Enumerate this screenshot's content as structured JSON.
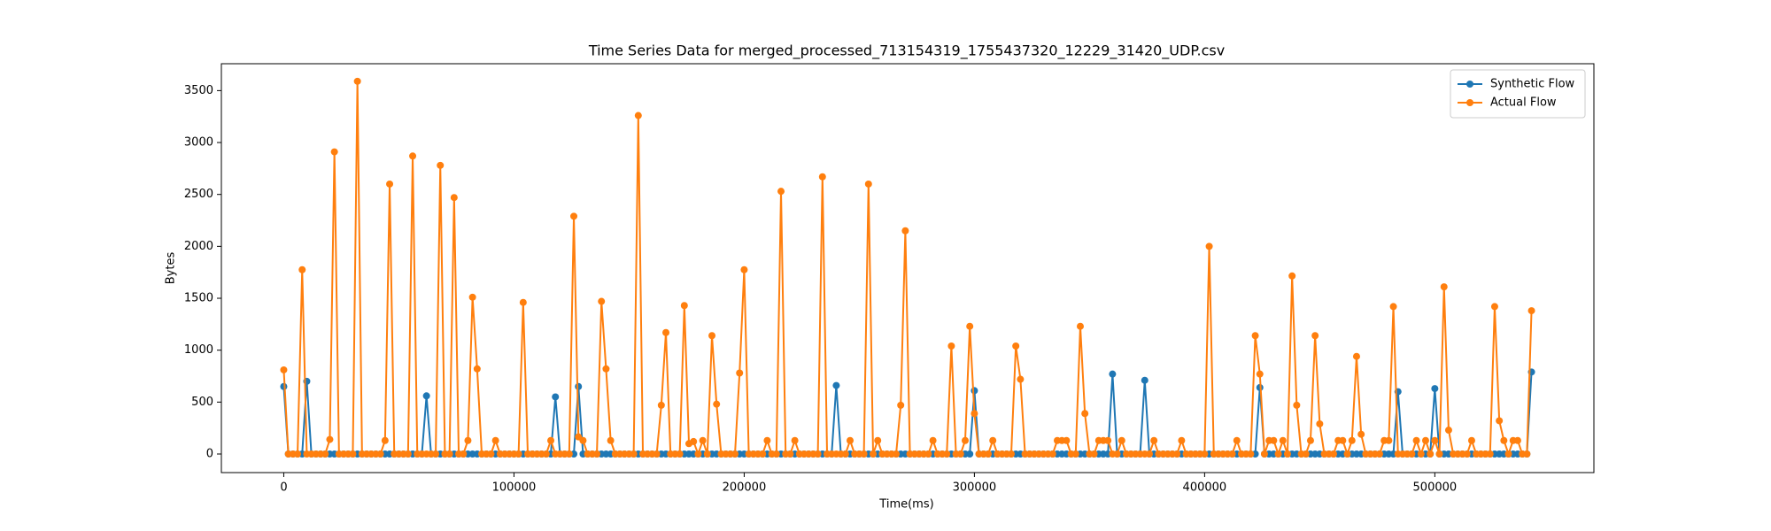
{
  "chart_data": {
    "type": "line",
    "title": "Time Series Data for merged_processed_713154319_1755437320_12229_31420_UDP.csv",
    "xlabel": "Time(ms)",
    "ylabel": "Bytes",
    "xlim": [
      -27100,
      569100
    ],
    "ylim": [
      -179,
      3759
    ],
    "xticks": [
      0,
      100000,
      200000,
      300000,
      400000,
      500000
    ],
    "yticks": [
      0,
      500,
      1000,
      1500,
      2000,
      2500,
      3000,
      3500
    ],
    "legend": "upper right",
    "markers": true,
    "x": [
      0,
      2000,
      4000,
      6000,
      8000,
      10000,
      12000,
      14000,
      16000,
      18000,
      20000,
      22000,
      24000,
      26000,
      28000,
      30000,
      32000,
      34000,
      36000,
      38000,
      40000,
      42000,
      44000,
      46000,
      48000,
      50000,
      52000,
      54000,
      56000,
      58000,
      60000,
      62000,
      64000,
      66000,
      68000,
      70000,
      72000,
      74000,
      76000,
      78000,
      80000,
      82000,
      84000,
      86000,
      88000,
      90000,
      92000,
      94000,
      96000,
      98000,
      100000,
      102000,
      104000,
      106000,
      108000,
      110000,
      112000,
      114000,
      116000,
      118000,
      120000,
      122000,
      124000,
      126000,
      128000,
      130000,
      132000,
      134000,
      136000,
      138000,
      140000,
      142000,
      144000,
      146000,
      148000,
      150000,
      152000,
      154000,
      156000,
      158000,
      160000,
      162000,
      164000,
      166000,
      168000,
      170000,
      172000,
      174000,
      176000,
      178000,
      180000,
      182000,
      184000,
      186000,
      188000,
      190000,
      192000,
      194000,
      196000,
      198000,
      200000,
      202000,
      204000,
      206000,
      208000,
      210000,
      212000,
      214000,
      216000,
      218000,
      220000,
      222000,
      224000,
      226000,
      228000,
      230000,
      232000,
      234000,
      236000,
      238000,
      240000,
      242000,
      244000,
      246000,
      248000,
      250000,
      252000,
      254000,
      256000,
      258000,
      260000,
      262000,
      264000,
      266000,
      268000,
      270000,
      272000,
      274000,
      276000,
      278000,
      280000,
      282000,
      284000,
      286000,
      288000,
      290000,
      292000,
      294000,
      296000,
      298000,
      300000,
      302000,
      304000,
      306000,
      308000,
      310000,
      312000,
      314000,
      316000,
      318000,
      320000,
      322000,
      324000,
      326000,
      328000,
      330000,
      332000,
      334000,
      336000,
      338000,
      340000,
      342000,
      344000,
      346000,
      348000,
      350000,
      352000,
      354000,
      356000,
      358000,
      360000,
      362000,
      364000,
      366000,
      368000,
      370000,
      372000,
      374000,
      376000,
      378000,
      380000,
      382000,
      384000,
      386000,
      388000,
      390000,
      392000,
      394000,
      396000,
      398000,
      400000,
      402000,
      404000,
      406000,
      408000,
      410000,
      412000,
      414000,
      416000,
      418000,
      420000,
      422000,
      424000,
      426000,
      428000,
      430000,
      432000,
      434000,
      436000,
      438000,
      440000,
      442000,
      444000,
      446000,
      448000,
      450000,
      452000,
      454000,
      456000,
      458000,
      460000,
      462000,
      464000,
      466000,
      468000,
      470000,
      472000,
      474000,
      476000,
      478000,
      480000,
      482000,
      484000,
      486000,
      488000,
      490000,
      492000,
      494000,
      496000,
      498000,
      500000,
      502000,
      504000,
      506000,
      508000,
      510000,
      512000,
      514000,
      516000,
      518000,
      520000,
      522000,
      524000,
      526000,
      528000,
      530000,
      532000,
      534000,
      536000,
      538000,
      540000,
      542000
    ],
    "series": [
      {
        "name": "Synthetic Flow",
        "color": "#1f77b4",
        "values": [
          650,
          0,
          0,
          0,
          0,
          700,
          0,
          0,
          0,
          0,
          0,
          0,
          0,
          0,
          0,
          0,
          0,
          0,
          0,
          0,
          0,
          0,
          0,
          0,
          0,
          0,
          0,
          0,
          0,
          0,
          0,
          560,
          0,
          0,
          0,
          0,
          0,
          0,
          0,
          0,
          0,
          0,
          0,
          0,
          0,
          0,
          0,
          0,
          0,
          0,
          0,
          0,
          0,
          0,
          0,
          0,
          0,
          0,
          0,
          550,
          0,
          0,
          0,
          0,
          650,
          0,
          0,
          0,
          0,
          0,
          0,
          0,
          0,
          0,
          0,
          0,
          0,
          0,
          0,
          0,
          0,
          0,
          0,
          0,
          0,
          0,
          0,
          0,
          0,
          0,
          0,
          0,
          0,
          0,
          0,
          0,
          0,
          0,
          0,
          0,
          0,
          0,
          0,
          0,
          0,
          0,
          0,
          0,
          0,
          0,
          0,
          0,
          0,
          0,
          0,
          0,
          0,
          0,
          0,
          0,
          660,
          0,
          0,
          0,
          0,
          0,
          0,
          0,
          0,
          0,
          0,
          0,
          0,
          0,
          0,
          0,
          0,
          0,
          0,
          0,
          0,
          0,
          0,
          0,
          0,
          0,
          0,
          0,
          0,
          0,
          610,
          0,
          0,
          0,
          0,
          0,
          0,
          0,
          0,
          0,
          0,
          0,
          0,
          0,
          0,
          0,
          0,
          0,
          0,
          0,
          0,
          0,
          0,
          0,
          0,
          0,
          0,
          0,
          0,
          0,
          770,
          0,
          0,
          0,
          0,
          0,
          0,
          710,
          0,
          0,
          0,
          0,
          0,
          0,
          0,
          0,
          0,
          0,
          0,
          0,
          0,
          0,
          0,
          0,
          0,
          0,
          0,
          0,
          0,
          0,
          0,
          0,
          640,
          0,
          0,
          0,
          0,
          0,
          0,
          0,
          0,
          0,
          0,
          0,
          0,
          0,
          0,
          0,
          0,
          0,
          0,
          0,
          0,
          0,
          0,
          0,
          0,
          0,
          0,
          0,
          0,
          0,
          600,
          0,
          0,
          0,
          0,
          0,
          0,
          0,
          630,
          0,
          0,
          0,
          0,
          0,
          0,
          0,
          0,
          0,
          0,
          0,
          0,
          0,
          0,
          0,
          0,
          0,
          0,
          0,
          0,
          790
        ]
      },
      {
        "name": "Actual Flow",
        "color": "#ff7f0e",
        "values": [
          810,
          0,
          0,
          0,
          1775,
          0,
          0,
          0,
          0,
          0,
          140,
          2910,
          0,
          0,
          0,
          0,
          3590,
          0,
          0,
          0,
          0,
          0,
          130,
          2600,
          0,
          0,
          0,
          0,
          2870,
          0,
          0,
          0,
          0,
          0,
          2780,
          0,
          0,
          2470,
          0,
          0,
          130,
          1510,
          820,
          0,
          0,
          0,
          130,
          0,
          0,
          0,
          0,
          0,
          1460,
          0,
          0,
          0,
          0,
          0,
          130,
          0,
          0,
          0,
          0,
          2290,
          165,
          130,
          0,
          0,
          0,
          1470,
          820,
          130,
          0,
          0,
          0,
          0,
          0,
          3260,
          0,
          0,
          0,
          0,
          470,
          1170,
          0,
          0,
          0,
          1430,
          100,
          120,
          0,
          130,
          0,
          1140,
          480,
          0,
          0,
          0,
          0,
          780,
          1775,
          0,
          0,
          0,
          0,
          130,
          0,
          0,
          2530,
          0,
          0,
          130,
          0,
          0,
          0,
          0,
          0,
          2670,
          0,
          0,
          0,
          0,
          0,
          130,
          0,
          0,
          0,
          2600,
          0,
          130,
          0,
          0,
          0,
          0,
          470,
          2150,
          0,
          0,
          0,
          0,
          0,
          130,
          0,
          0,
          0,
          1040,
          0,
          0,
          130,
          1230,
          390,
          0,
          0,
          0,
          130,
          0,
          0,
          0,
          0,
          1040,
          720,
          0,
          0,
          0,
          0,
          0,
          0,
          0,
          130,
          130,
          130,
          0,
          0,
          1230,
          390,
          0,
          0,
          130,
          130,
          130,
          0,
          0,
          130,
          0,
          0,
          0,
          0,
          0,
          0,
          130,
          0,
          0,
          0,
          0,
          0,
          130,
          0,
          0,
          0,
          0,
          0,
          2000,
          0,
          0,
          0,
          0,
          0,
          130,
          0,
          0,
          0,
          1140,
          770,
          0,
          130,
          130,
          0,
          130,
          0,
          1715,
          470,
          0,
          0,
          130,
          1140,
          290,
          0,
          0,
          0,
          130,
          130,
          0,
          130,
          940,
          190,
          0,
          0,
          0,
          0,
          130,
          130,
          1420,
          0,
          0,
          0,
          0,
          130,
          0,
          130,
          0,
          130,
          0,
          1610,
          230,
          0,
          0,
          0,
          0,
          130,
          0,
          0,
          0,
          0,
          1420,
          320,
          130,
          0,
          130,
          130,
          0,
          0,
          1380
        ]
      }
    ]
  }
}
